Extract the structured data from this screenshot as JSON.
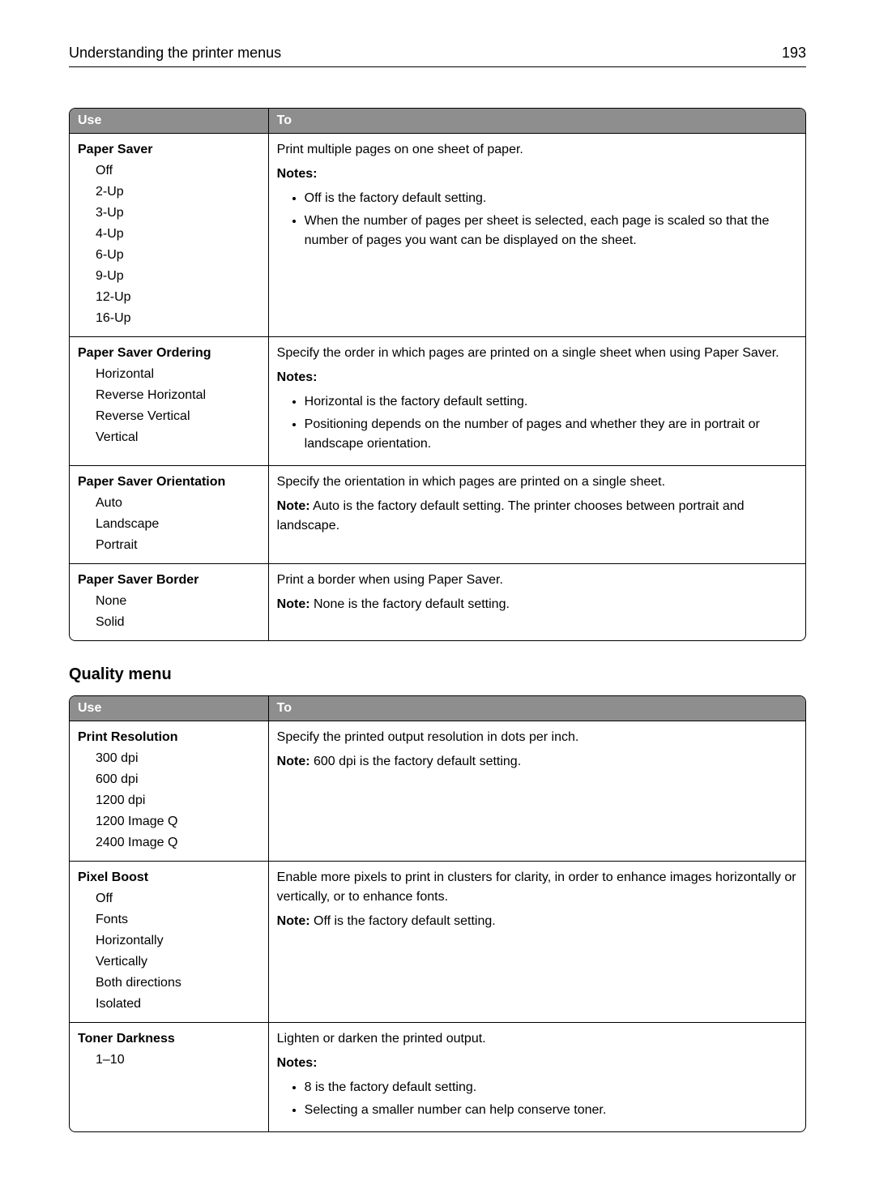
{
  "header": {
    "title": "Understanding the printer menus",
    "page_number": "193"
  },
  "table1": {
    "head_use": "Use",
    "head_to": "To",
    "rows": [
      {
        "use_title": "Paper Saver",
        "use_options": [
          "Off",
          "2-Up",
          "3-Up",
          "4-Up",
          "6-Up",
          "9-Up",
          "12-Up",
          "16-Up"
        ],
        "to_desc": "Print multiple pages on one sheet of paper.",
        "notes_label": "Notes:",
        "notes": [
          "Off is the factory default setting.",
          "When the number of pages per sheet is selected, each page is scaled so that the number of pages you want can be displayed on the sheet."
        ]
      },
      {
        "use_title": "Paper Saver Ordering",
        "use_options": [
          "Horizontal",
          "Reverse Horizontal",
          "Reverse Vertical",
          "Vertical"
        ],
        "to_desc": "Specify the order in which pages are printed on a single sheet when using Paper Saver.",
        "notes_label": "Notes:",
        "notes": [
          "Horizontal is the factory default setting.",
          "Positioning depends on the number of pages and whether they are in portrait or landscape orientation."
        ]
      },
      {
        "use_title": "Paper Saver Orientation",
        "use_options": [
          "Auto",
          "Landscape",
          "Portrait"
        ],
        "to_desc": "Specify the orientation in which pages are printed on a single sheet.",
        "note_label": "Note:",
        "note_text": " Auto is the factory default setting. The printer chooses between portrait and landscape."
      },
      {
        "use_title": "Paper Saver Border",
        "use_options": [
          "None",
          "Solid"
        ],
        "to_desc": "Print a border when using Paper Saver.",
        "note_label": "Note:",
        "note_text": " None is the factory default setting."
      }
    ]
  },
  "section_title": "Quality menu",
  "table2": {
    "head_use": "Use",
    "head_to": "To",
    "rows": [
      {
        "use_title": "Print Resolution",
        "use_options": [
          "300 dpi",
          "600 dpi",
          "1200 dpi",
          "1200 Image Q",
          "2400 Image Q"
        ],
        "to_desc": "Specify the printed output resolution in dots per inch.",
        "note_label": "Note:",
        "note_text": " 600 dpi is the factory default setting."
      },
      {
        "use_title": "Pixel Boost",
        "use_options": [
          "Off",
          "Fonts",
          "Horizontally",
          "Vertically",
          "Both directions",
          "Isolated"
        ],
        "to_desc": "Enable more pixels to print in clusters for clarity, in order to enhance images horizontally or vertically, or to enhance fonts.",
        "note_label": "Note:",
        "note_text": " Off is the factory default setting."
      },
      {
        "use_title": "Toner Darkness",
        "use_options": [
          "1–10"
        ],
        "to_desc": "Lighten or darken the printed output.",
        "notes_label": "Notes:",
        "notes": [
          "8 is the factory default setting.",
          "Selecting a smaller number can help conserve toner."
        ]
      }
    ]
  }
}
